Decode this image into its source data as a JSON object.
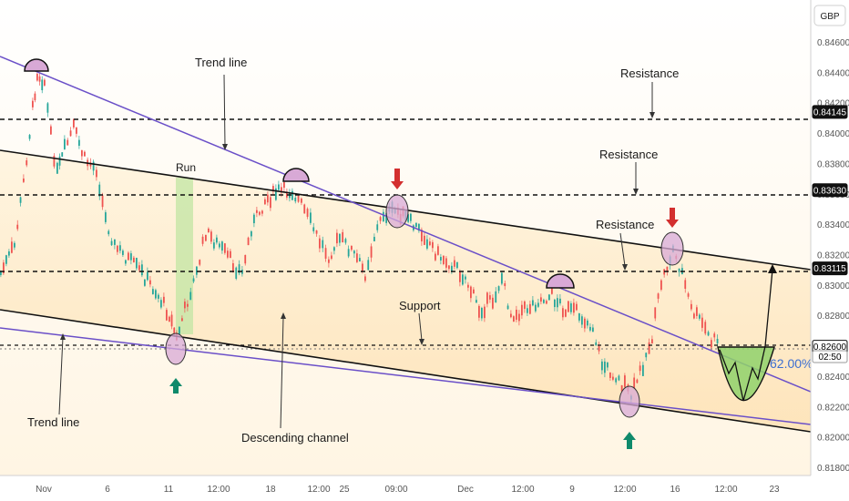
{
  "chart_data": {
    "type": "line",
    "currency": "GBP",
    "y_ticks": [
      "0.84600",
      "0.84400",
      "0.84200",
      "0.84000",
      "0.83800",
      "0.83600",
      "0.83400",
      "0.83200",
      "0.83000",
      "0.82800",
      "0.82400",
      "0.82200",
      "0.82000",
      "0.81800"
    ],
    "x_ticks": [
      "Nov",
      "6",
      "11",
      "12:00",
      "18",
      "12:00",
      "25",
      "09:00",
      "Dec",
      "12:00",
      "9",
      "12:00",
      "16",
      "12:00",
      "23"
    ],
    "levels": [
      {
        "price": "0.84145",
        "style": "dark"
      },
      {
        "price": "0.83630",
        "style": "dark"
      },
      {
        "price": "0.83115",
        "style": "dark"
      },
      {
        "price": "0.82600",
        "style": "light"
      }
    ],
    "current_price": "0.82600",
    "countdown": "02:50",
    "fib_label": "62.00%",
    "annotations": {
      "trend_line_top": "Trend line",
      "trend_line_bottom": "Trend line",
      "resistance_1": "Resistance",
      "resistance_2": "Resistance",
      "resistance_3": "Resistance",
      "support": "Support",
      "run": "Run",
      "descending_channel": "Descending channel"
    },
    "colors": {
      "channel_fill": "#fde9c6",
      "trend_line": "#6a4fc8",
      "channel_line": "#111111",
      "candle_up": "#26a69a",
      "candle_down": "#ef5350",
      "marker_fill": "#d8a9d6",
      "arrow_up": "#0f8a6b",
      "arrow_down": "#d32f2f",
      "run_fill": "#bfe3a3",
      "cup_fill": "#8fd16b"
    }
  }
}
